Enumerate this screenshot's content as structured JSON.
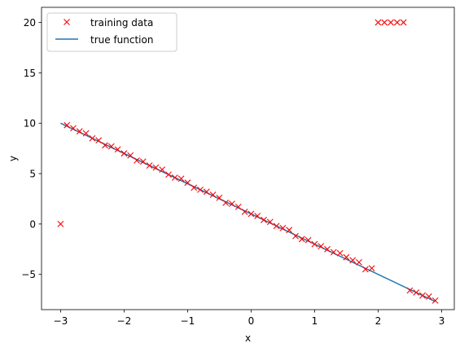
{
  "chart_data": {
    "type": "scatter",
    "xlabel": "x",
    "ylabel": "y",
    "xlim": [
      -3.3,
      3.2
    ],
    "ylim": [
      -8.5,
      21.5
    ],
    "xticks": [
      -3,
      -2,
      -1,
      0,
      1,
      2,
      3
    ],
    "yticks": [
      -5,
      0,
      5,
      10,
      15,
      20
    ],
    "grid": false,
    "legend_placement": "top-left",
    "legend": [
      "training data",
      "true function"
    ],
    "series": [
      {
        "name": "training data",
        "kind": "marker",
        "marker": "x",
        "color": "#ff0000",
        "points": [
          [
            -3.0,
            0.0
          ],
          [
            -2.9,
            9.8
          ],
          [
            -2.8,
            9.5
          ],
          [
            -2.7,
            9.2
          ],
          [
            -2.6,
            9.0
          ],
          [
            -2.5,
            8.5
          ],
          [
            -2.4,
            8.3
          ],
          [
            -2.3,
            7.8
          ],
          [
            -2.2,
            7.7
          ],
          [
            -2.1,
            7.4
          ],
          [
            -2.0,
            7.0
          ],
          [
            -1.9,
            6.8
          ],
          [
            -1.8,
            6.3
          ],
          [
            -1.7,
            6.2
          ],
          [
            -1.6,
            5.8
          ],
          [
            -1.5,
            5.6
          ],
          [
            -1.4,
            5.4
          ],
          [
            -1.3,
            4.9
          ],
          [
            -1.2,
            4.6
          ],
          [
            -1.1,
            4.5
          ],
          [
            -1.0,
            4.1
          ],
          [
            -0.9,
            3.6
          ],
          [
            -0.8,
            3.4
          ],
          [
            -0.7,
            3.2
          ],
          [
            -0.6,
            2.9
          ],
          [
            -0.5,
            2.6
          ],
          [
            -0.4,
            2.1
          ],
          [
            -0.3,
            2.0
          ],
          [
            -0.2,
            1.7
          ],
          [
            -0.1,
            1.2
          ],
          [
            0.0,
            1.0
          ],
          [
            0.1,
            0.8
          ],
          [
            0.2,
            0.4
          ],
          [
            0.3,
            0.2
          ],
          [
            0.4,
            -0.2
          ],
          [
            0.5,
            -0.4
          ],
          [
            0.6,
            -0.6
          ],
          [
            0.7,
            -1.2
          ],
          [
            0.8,
            -1.5
          ],
          [
            0.9,
            -1.6
          ],
          [
            1.0,
            -2.0
          ],
          [
            1.1,
            -2.2
          ],
          [
            1.2,
            -2.5
          ],
          [
            1.3,
            -2.8
          ],
          [
            1.4,
            -2.9
          ],
          [
            1.5,
            -3.3
          ],
          [
            1.6,
            -3.6
          ],
          [
            1.7,
            -3.8
          ],
          [
            1.8,
            -4.5
          ],
          [
            1.9,
            -4.4
          ],
          [
            2.0,
            20.0
          ],
          [
            2.1,
            20.0
          ],
          [
            2.2,
            20.0
          ],
          [
            2.3,
            20.0
          ],
          [
            2.4,
            20.0
          ],
          [
            2.5,
            -6.6
          ],
          [
            2.6,
            -6.8
          ],
          [
            2.7,
            -7.1
          ],
          [
            2.8,
            -7.2
          ],
          [
            2.9,
            -7.6
          ]
        ]
      },
      {
        "name": "true function",
        "kind": "line",
        "color": "#1f77b4",
        "points": [
          [
            -3.0,
            10.0
          ],
          [
            2.9,
            -7.7
          ]
        ]
      }
    ]
  }
}
